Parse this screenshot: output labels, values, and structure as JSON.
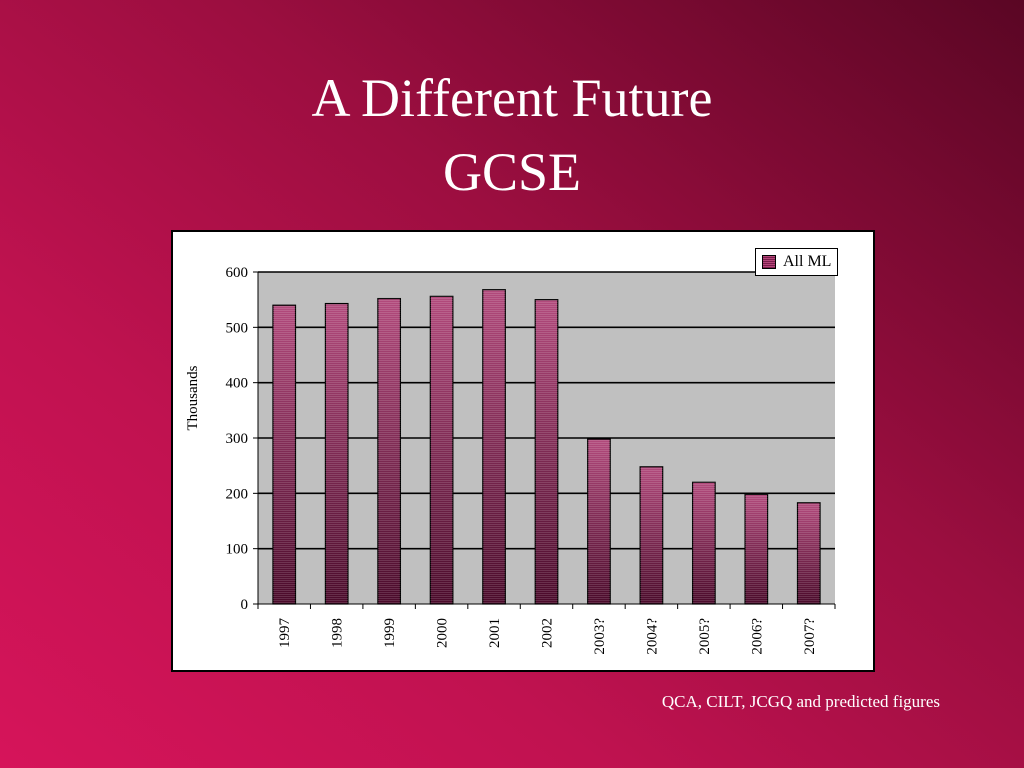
{
  "slide": {
    "title_line1": "A Different Future",
    "title_line2": "GCSE",
    "source_note": "QCA, CILT, JCGQ and predicted figures"
  },
  "colors": {
    "bar_top": "#b24a7c",
    "bar_bottom": "#4a0a2a",
    "plot_background": "#c0c0c0"
  },
  "chart_data": {
    "type": "bar",
    "categories": [
      "1997",
      "1998",
      "1999",
      "2000",
      "2001",
      "2002",
      "2003?",
      "2004?",
      "2005?",
      "2006?",
      "2007?"
    ],
    "series": [
      {
        "name": "All ML",
        "values": [
          540,
          543,
          552,
          556,
          568,
          550,
          298,
          248,
          220,
          198,
          183
        ]
      }
    ],
    "ylabel": "Thousands",
    "xlabel": "",
    "ylim": [
      0,
      600
    ],
    "yticks": [
      0,
      100,
      200,
      300,
      400,
      500,
      600
    ],
    "grid": true,
    "legend": "top-right"
  }
}
